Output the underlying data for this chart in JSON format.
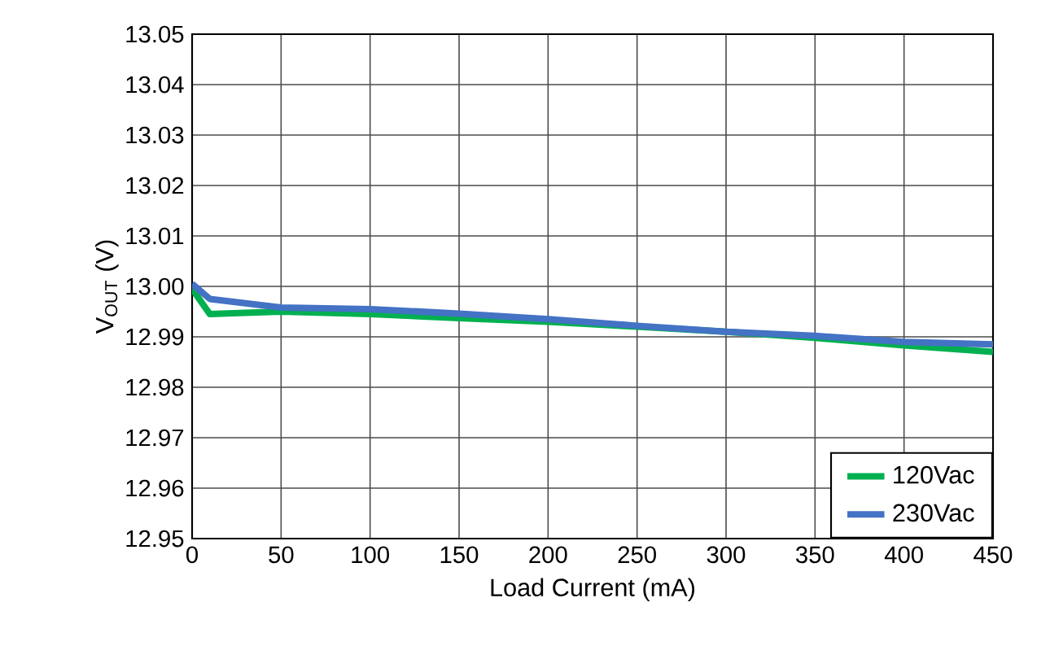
{
  "chart_data": {
    "type": "line",
    "xlabel": "Load Current (mA)",
    "ylabel": "V$_{OUT}$ (V)",
    "xlim": [
      0,
      450
    ],
    "xticks": [
      0,
      50,
      100,
      150,
      200,
      250,
      300,
      350,
      400,
      450
    ],
    "ylim": [
      12.95,
      13.05
    ],
    "yticks": [
      12.95,
      12.96,
      12.97,
      12.98,
      12.99,
      {
        "value": 13.0,
        "label": "13.00"
      },
      13.01,
      13.02,
      13.03,
      13.04,
      13.05
    ],
    "grid": true,
    "legend": "bottom right",
    "line_style": "solid",
    "marker": "none",
    "series": [
      {
        "name": "120Vac",
        "color": "#00b050",
        "x": [
          0,
          10,
          50,
          100,
          150,
          200,
          250,
          300,
          350,
          400,
          450
        ],
        "values": [
          12.9995,
          12.9945,
          12.995,
          12.9945,
          12.9937,
          12.993,
          12.992,
          12.991,
          12.9898,
          12.9883,
          12.987
        ]
      },
      {
        "name": "230Vac",
        "color": "#4472c4",
        "x": [
          0,
          10,
          50,
          100,
          150,
          200,
          250,
          300,
          350,
          400,
          450
        ],
        "values": [
          13.0005,
          12.9975,
          12.9958,
          12.9955,
          12.9946,
          12.9935,
          12.9922,
          12.991,
          12.9902,
          12.989,
          12.9885
        ]
      }
    ]
  }
}
